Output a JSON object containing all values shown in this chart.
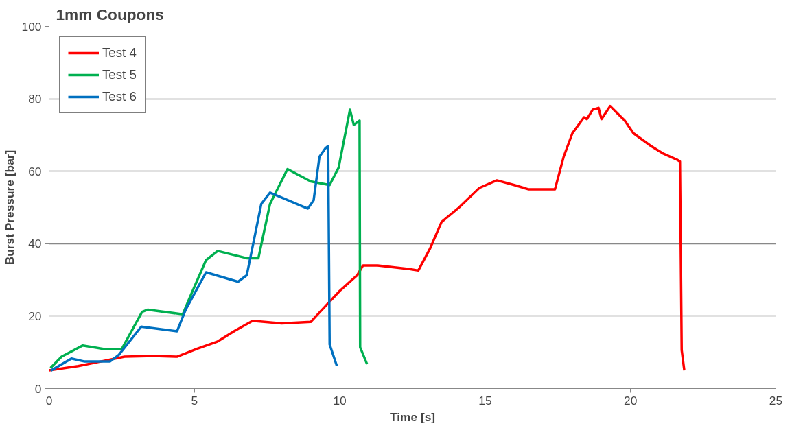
{
  "chart_data": {
    "type": "line",
    "title": "1mm Coupons",
    "xlabel": "Time [s]",
    "ylabel": "Burst Pressure [bar]",
    "xlim": [
      0,
      25
    ],
    "xticks": [
      0,
      5,
      10,
      15,
      20,
      25
    ],
    "ylim": [
      0,
      100
    ],
    "yticks": [
      0,
      20,
      40,
      60,
      80,
      100
    ],
    "grid": "y",
    "legend": "top left",
    "marker": "none",
    "line_style": "solid",
    "series": [
      {
        "name": "Test 4",
        "color": "#ff0000",
        "x": [
          0,
          1.0,
          1.8,
          2.6,
          3.6,
          4.4,
          5.1,
          5.8,
          6.4,
          7.0,
          8.0,
          9.0,
          9.3,
          10.0,
          10.6,
          10.8,
          11.3,
          12.4,
          12.7,
          13.1,
          13.5,
          14.1,
          14.8,
          15.4,
          16.0,
          16.5,
          17.2,
          17.4,
          17.7,
          18.0,
          18.4,
          18.5,
          18.7,
          18.9,
          19.0,
          19.3,
          19.8,
          20.1,
          20.7,
          21.1,
          21.6,
          21.7,
          21.76,
          21.85
        ],
        "values": [
          5,
          6.2,
          7.5,
          8.8,
          9,
          8.8,
          11,
          13,
          16,
          18.7,
          18,
          18.4,
          21,
          27,
          31.3,
          34,
          34,
          33,
          32.6,
          38.6,
          46,
          50,
          55.4,
          57.5,
          56.2,
          55,
          55,
          55,
          64,
          70.5,
          74.9,
          74.4,
          77,
          77.5,
          74.4,
          78,
          74,
          70.5,
          67,
          65,
          63.2,
          62.7,
          10.6,
          5
        ]
      },
      {
        "name": "Test 5",
        "color": "#00b050",
        "x": [
          0.05,
          0.43,
          1.16,
          1.9,
          2.5,
          3.2,
          3.4,
          4.6,
          4.8,
          5.4,
          5.8,
          6.8,
          7.2,
          7.6,
          8.2,
          9.0,
          9.65,
          9.96,
          10.35,
          10.48,
          10.68,
          10.7,
          10.94
        ],
        "values": [
          5.7,
          8.8,
          11.9,
          10.9,
          10.9,
          21.2,
          21.8,
          20.5,
          24.4,
          35.5,
          38,
          36,
          36,
          51,
          60.6,
          57.2,
          56.2,
          61,
          77,
          72.8,
          74,
          11.4,
          6.7
        ]
      },
      {
        "name": "Test 6",
        "color": "#0070c0",
        "x": [
          0.05,
          0.77,
          1.2,
          2.1,
          2.4,
          3.17,
          4.4,
          4.7,
          5.4,
          6.5,
          6.8,
          7.3,
          7.6,
          8.9,
          9.1,
          9.3,
          9.5,
          9.6,
          9.65,
          9.9
        ],
        "values": [
          4.9,
          8.3,
          7.5,
          7.5,
          9.3,
          17.1,
          15.8,
          21.8,
          32.1,
          29.5,
          31.3,
          51,
          54.1,
          49.7,
          52,
          64,
          66.3,
          67,
          12.2,
          6.2
        ]
      }
    ]
  }
}
